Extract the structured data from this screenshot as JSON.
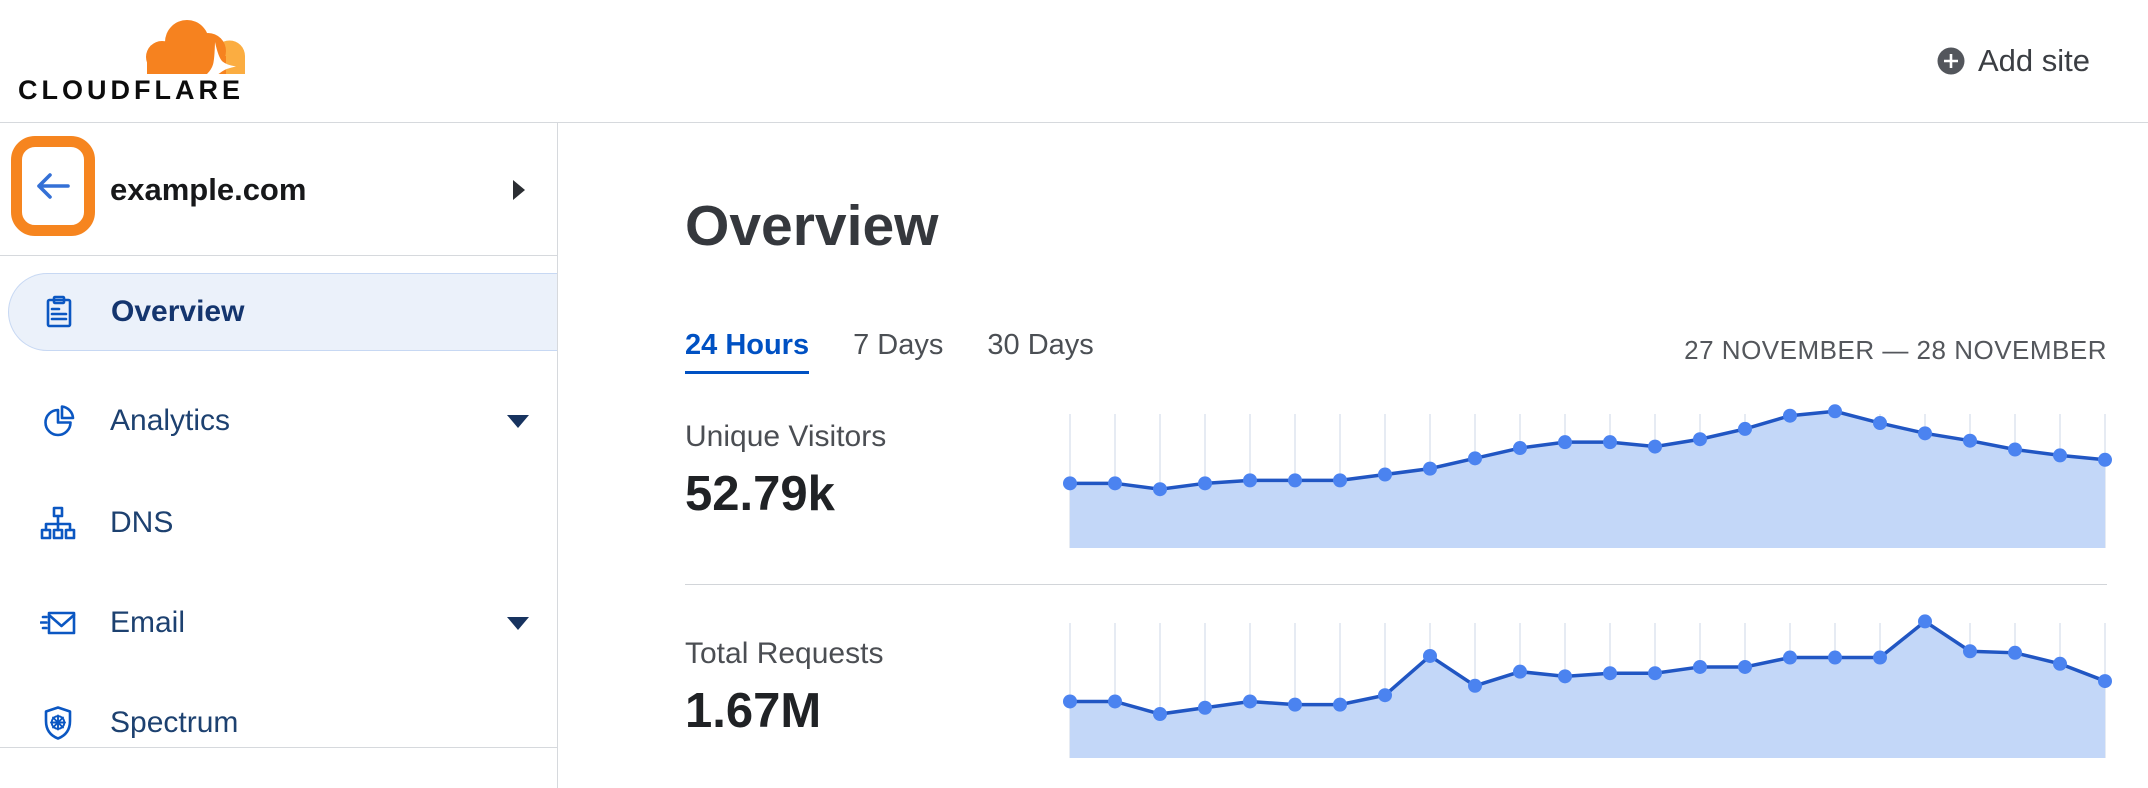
{
  "header": {
    "logo_text": "CLOUDFLARE",
    "add_site_label": "Add site"
  },
  "sidebar": {
    "site_name": "example.com",
    "items": [
      {
        "label": "Overview",
        "selected": true,
        "has_caret": false,
        "icon": "clipboard-icon"
      },
      {
        "label": "Analytics",
        "selected": false,
        "has_caret": true,
        "icon": "pie-chart-icon"
      },
      {
        "label": "DNS",
        "selected": false,
        "has_caret": false,
        "icon": "sitemap-icon"
      },
      {
        "label": "Email",
        "selected": false,
        "has_caret": true,
        "icon": "envelope-icon"
      },
      {
        "label": "Spectrum",
        "selected": false,
        "has_caret": false,
        "icon": "shield-burst-icon"
      }
    ]
  },
  "main": {
    "title": "Overview",
    "tabs": [
      {
        "label": "24 Hours",
        "active": true
      },
      {
        "label": "7 Days",
        "active": false
      },
      {
        "label": "30 Days",
        "active": false
      }
    ],
    "date_range": "27 NOVEMBER — 28 NOVEMBER",
    "metrics": [
      {
        "label": "Unique Visitors",
        "value": "52.79k"
      },
      {
        "label": "Total Requests",
        "value": "1.67M"
      }
    ]
  },
  "icons": {
    "logo": "cloudflare-cloud",
    "add_site": "plus-circle-icon",
    "back": "arrow-left-icon",
    "site_expand": "caret-right-icon",
    "nav_expand": "caret-down-icon"
  },
  "colors": {
    "brand_orange": "#f6821f",
    "brand_orange_light": "#fbad41",
    "annotation_ring": "#f6851f",
    "link_blue": "#0051c3",
    "nav_text": "#1d4170",
    "selected_item_bg": "#ebf1fa",
    "chart_line": "#2156c3",
    "chart_dot": "#4b83f0",
    "chart_area": "#c3d7f8",
    "chart_grid": "#e6ebf3",
    "divider": "#d6d9dd"
  },
  "chart_data": [
    {
      "type": "area",
      "title": "Unique Visitors",
      "summary_value": "52.79k",
      "time_range": "24 Hours (27 November — 28 November)",
      "xlabel": "",
      "ylabel": "",
      "axis_labels_visible": false,
      "grid": "vertical-only",
      "legend_position": "none",
      "num_points": 24,
      "values_pct_of_plot_height": [
        44,
        44,
        40,
        44,
        46,
        46,
        46,
        50,
        54,
        61,
        68,
        72,
        72,
        69,
        74,
        81,
        90,
        93,
        85,
        78,
        73,
        67,
        63,
        60
      ]
    },
    {
      "type": "area",
      "title": "Total Requests",
      "summary_value": "1.67M",
      "time_range": "24 Hours (27 November — 28 November)",
      "xlabel": "",
      "ylabel": "",
      "axis_labels_visible": false,
      "grid": "vertical-only",
      "legend_position": "none",
      "num_points": 24,
      "values_pct_of_plot_height": [
        36,
        36,
        28,
        32,
        36,
        34,
        34,
        40,
        65,
        46,
        55,
        52,
        54,
        54,
        58,
        58,
        64,
        64,
        64,
        87,
        68,
        67,
        60,
        49
      ]
    }
  ]
}
